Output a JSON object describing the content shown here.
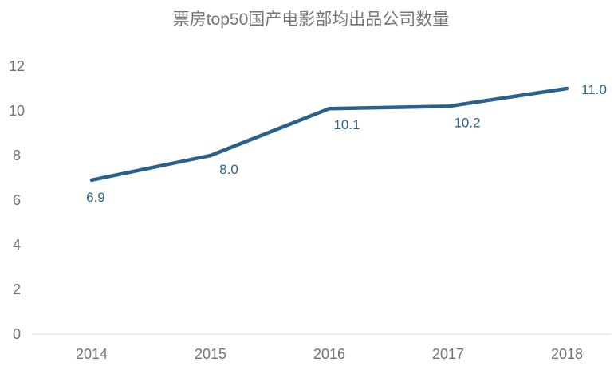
{
  "title": "票房top50国产电影部均出品公司数量",
  "colors": {
    "line": "#2A618C",
    "data_label": "#2E6389",
    "title_text": "#757575",
    "axis_text": "#737373",
    "axis_line": "#D9D9D9",
    "background": "#FFFFFF"
  },
  "chart_data": {
    "type": "line",
    "title": "票房top50国产电影部均出品公司数量",
    "categories": [
      "2014",
      "2015",
      "2016",
      "2017",
      "2018"
    ],
    "values": [
      6.9,
      8.0,
      10.1,
      10.2,
      11.0
    ],
    "data_labels": [
      "6.9",
      "8.0",
      "10.1",
      "10.2",
      "11.0"
    ],
    "yticks": [
      "12",
      "10",
      "8",
      "6",
      "4",
      "2",
      "0"
    ],
    "ylim": [
      0,
      12
    ],
    "xlabel": "",
    "ylabel": "",
    "grid": false,
    "legend": false,
    "marker": "none"
  }
}
